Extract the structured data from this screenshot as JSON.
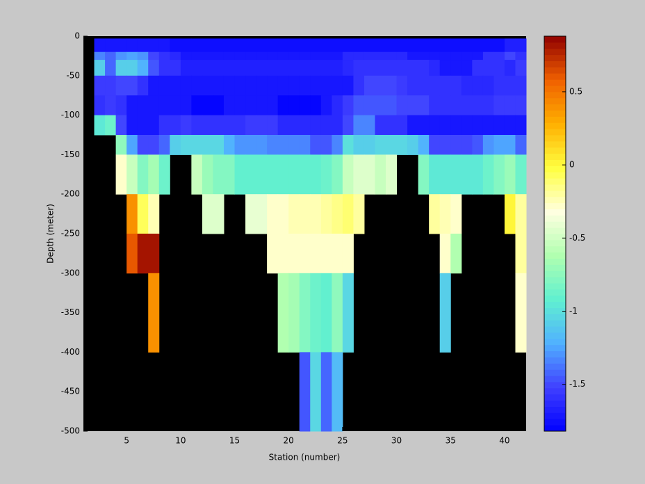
{
  "chart_data": {
    "type": "heatmap",
    "xlabel": "Station (number)",
    "ylabel": "Depth (meter)",
    "x_edges": [
      2,
      3,
      4,
      5,
      6,
      7,
      8,
      9,
      10,
      11,
      12,
      13,
      14,
      15,
      16,
      17,
      18,
      19,
      20,
      21,
      22,
      23,
      24,
      25,
      26,
      27,
      28,
      29,
      30,
      31,
      32,
      33,
      34,
      35,
      36,
      37,
      38,
      39,
      40,
      41,
      42
    ],
    "y_edges": [
      -3,
      -20,
      -30,
      -50,
      -75,
      -100,
      -125,
      -150,
      -200,
      -250,
      -300,
      -400,
      -500
    ],
    "values": [
      [
        -1.72,
        -1.72,
        -1.72,
        -1.72,
        -1.72,
        -1.72,
        -1.72,
        -1.75,
        -1.75,
        -1.75,
        -1.75,
        -1.75,
        -1.75,
        -1.75,
        -1.75,
        -1.75,
        -1.75,
        -1.75,
        -1.75,
        -1.75,
        -1.75,
        -1.75,
        -1.75,
        -1.75,
        -1.75,
        -1.75,
        -1.75,
        -1.75,
        -1.75,
        -1.75,
        -1.75,
        -1.75,
        -1.75,
        -1.75,
        -1.75,
        -1.75,
        -1.75,
        -1.75,
        -1.68,
        -1.68
      ],
      [
        -1.35,
        -1.4,
        -1.3,
        -1.25,
        -1.3,
        -1.5,
        -1.6,
        -1.65,
        -1.72,
        -1.72,
        -1.72,
        -1.72,
        -1.72,
        -1.72,
        -1.72,
        -1.72,
        -1.72,
        -1.72,
        -1.72,
        -1.72,
        -1.72,
        -1.72,
        -1.72,
        -1.65,
        -1.65,
        -1.65,
        -1.65,
        -1.65,
        -1.65,
        -1.7,
        -1.7,
        -1.7,
        -1.7,
        -1.7,
        -1.7,
        -1.7,
        -1.6,
        -1.6,
        -1.5,
        -1.6
      ],
      [
        -1.1,
        -1.4,
        -1.1,
        -1.1,
        -1.2,
        -1.45,
        -1.6,
        -1.6,
        -1.68,
        -1.68,
        -1.68,
        -1.68,
        -1.68,
        -1.68,
        -1.68,
        -1.68,
        -1.68,
        -1.68,
        -1.68,
        -1.68,
        -1.68,
        -1.68,
        -1.68,
        -1.65,
        -1.6,
        -1.6,
        -1.6,
        -1.6,
        -1.6,
        -1.6,
        -1.6,
        -1.65,
        -1.7,
        -1.7,
        -1.7,
        -1.6,
        -1.6,
        -1.6,
        -1.65,
        -1.55
      ],
      [
        -1.55,
        -1.55,
        -1.5,
        -1.5,
        -1.6,
        -1.7,
        -1.7,
        -1.7,
        -1.7,
        -1.7,
        -1.7,
        -1.7,
        -1.7,
        -1.7,
        -1.7,
        -1.7,
        -1.7,
        -1.7,
        -1.7,
        -1.7,
        -1.7,
        -1.72,
        -1.72,
        -1.72,
        -1.6,
        -1.5,
        -1.5,
        -1.5,
        -1.55,
        -1.6,
        -1.6,
        -1.6,
        -1.6,
        -1.6,
        -1.65,
        -1.65,
        -1.65,
        -1.6,
        -1.6,
        -1.6
      ],
      [
        -1.6,
        -1.55,
        -1.6,
        -1.7,
        -1.7,
        -1.7,
        -1.72,
        -1.72,
        -1.72,
        -1.8,
        -1.8,
        -1.8,
        -1.72,
        -1.72,
        -1.72,
        -1.72,
        -1.72,
        -1.78,
        -1.78,
        -1.78,
        -1.78,
        -1.72,
        -1.65,
        -1.55,
        -1.45,
        -1.45,
        -1.45,
        -1.45,
        -1.5,
        -1.5,
        -1.5,
        -1.6,
        -1.6,
        -1.6,
        -1.6,
        -1.6,
        -1.6,
        -1.55,
        -1.55,
        -1.55
      ],
      [
        -0.95,
        -0.85,
        -1.5,
        -1.72,
        -1.72,
        -1.72,
        -1.6,
        -1.6,
        -1.55,
        -1.6,
        -1.6,
        -1.6,
        -1.6,
        -1.6,
        -1.55,
        -1.55,
        -1.55,
        -1.65,
        -1.65,
        -1.65,
        -1.65,
        -1.65,
        -1.65,
        -1.5,
        -1.35,
        -1.35,
        -1.6,
        -1.6,
        -1.6,
        -1.72,
        -1.72,
        -1.72,
        -1.72,
        -1.72,
        -1.72,
        -1.72,
        -1.72,
        -1.72,
        -1.72,
        -1.72
      ],
      [
        null,
        null,
        -0.75,
        -1.25,
        -1.5,
        -1.5,
        -1.4,
        -1.1,
        -1.05,
        -1.05,
        -1.05,
        -1.05,
        -1.2,
        -1.3,
        -1.3,
        -1.3,
        -1.35,
        -1.35,
        -1.35,
        -1.35,
        -1.45,
        -1.45,
        -1.35,
        -1.0,
        -1.1,
        -1.1,
        -1.05,
        -1.05,
        -1.05,
        -1.1,
        -1.2,
        -1.5,
        -1.5,
        -1.5,
        -1.5,
        -1.45,
        -1.3,
        -1.25,
        -1.25,
        -1.4
      ],
      [
        null,
        null,
        -0.3,
        -0.55,
        -0.8,
        -0.65,
        -0.85,
        null,
        null,
        -0.55,
        -0.7,
        -0.8,
        -0.8,
        -0.9,
        -0.9,
        -0.9,
        -0.9,
        -0.9,
        -0.9,
        -0.9,
        -0.9,
        -0.85,
        -0.8,
        -0.55,
        -0.45,
        -0.45,
        -0.55,
        -0.45,
        null,
        null,
        -0.8,
        -0.95,
        -0.95,
        -0.95,
        -0.95,
        -0.95,
        -0.85,
        -0.8,
        -0.7,
        -0.85
      ],
      [
        null,
        null,
        null,
        0.4,
        -0.05,
        -0.25,
        null,
        null,
        null,
        null,
        -0.45,
        -0.45,
        null,
        null,
        -0.4,
        -0.4,
        -0.3,
        -0.3,
        -0.25,
        -0.25,
        -0.25,
        -0.2,
        -0.15,
        -0.1,
        -0.2,
        null,
        null,
        null,
        null,
        null,
        null,
        -0.2,
        -0.25,
        -0.3,
        null,
        null,
        null,
        null,
        0.0,
        -0.2
      ],
      [
        null,
        null,
        null,
        0.6,
        0.8,
        0.8,
        null,
        null,
        null,
        null,
        null,
        null,
        null,
        null,
        null,
        null,
        -0.3,
        -0.3,
        -0.3,
        -0.3,
        -0.3,
        -0.3,
        -0.3,
        -0.3,
        null,
        null,
        null,
        null,
        null,
        null,
        null,
        null,
        -0.3,
        -0.6,
        null,
        null,
        null,
        null,
        null,
        -0.2
      ],
      [
        null,
        null,
        null,
        null,
        null,
        0.4,
        null,
        null,
        null,
        null,
        null,
        null,
        null,
        null,
        null,
        null,
        null,
        -0.6,
        -0.65,
        -0.8,
        -0.85,
        -0.9,
        -0.75,
        -1.05,
        null,
        null,
        null,
        null,
        null,
        null,
        null,
        null,
        -1.1,
        null,
        null,
        null,
        null,
        null,
        null,
        -0.3
      ],
      [
        null,
        null,
        null,
        null,
        null,
        null,
        null,
        null,
        null,
        null,
        null,
        null,
        null,
        null,
        null,
        null,
        null,
        null,
        null,
        -1.45,
        -1.05,
        -1.4,
        -1.15,
        null,
        null,
        null,
        null,
        null,
        null,
        null,
        null,
        null,
        null,
        null,
        null,
        null,
        null,
        null,
        null,
        null
      ]
    ],
    "xlim": [
      1,
      42
    ],
    "ylim": [
      -500,
      0
    ],
    "xticks": [
      5,
      10,
      15,
      20,
      25,
      30,
      35,
      40
    ],
    "yticks": [
      0,
      -50,
      -100,
      -150,
      -200,
      -250,
      -300,
      -350,
      -400,
      -450,
      -500
    ],
    "background": "#000000",
    "colorbar": {
      "clim": [
        -1.82,
        0.88
      ],
      "ticks": [
        0.5,
        0,
        -0.5,
        -1,
        -1.5
      ],
      "levels": 64,
      "colormap": [
        "#0000ff",
        "#4040ff",
        "#50b0ff",
        "#60f0d0",
        "#b0ffb0",
        "#ffffe0",
        "#ffff40",
        "#ffb000",
        "#f06000",
        "#900000"
      ]
    }
  }
}
